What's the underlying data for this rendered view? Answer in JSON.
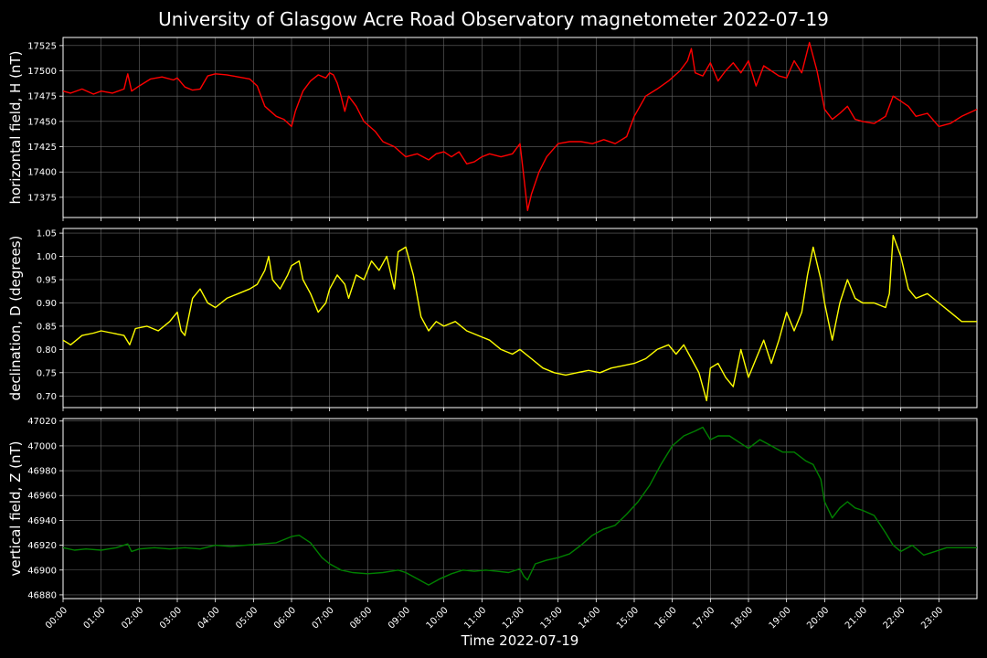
{
  "title": "University of Glasgow Acre Road Observatory magnetometer 2022-07-19",
  "xlabel": "Time 2022-07-19",
  "x_ticks": [
    "00:00",
    "01:00",
    "02:00",
    "03:00",
    "04:00",
    "05:00",
    "06:00",
    "07:00",
    "08:00",
    "09:00",
    "10:00",
    "11:00",
    "12:00",
    "13:00",
    "14:00",
    "15:00",
    "16:00",
    "17:00",
    "18:00",
    "19:00",
    "20:00",
    "21:00",
    "22:00",
    "23:00"
  ],
  "chart_data": [
    {
      "type": "line",
      "ylabel": "horizontal field, H (nT)",
      "ylim": [
        17355,
        17533
      ],
      "yticks": [
        17375,
        17400,
        17425,
        17450,
        17475,
        17500,
        17525
      ],
      "grid": true,
      "color": "#ff0000",
      "x_unit": "hours since 00:00",
      "xlim": [
        0,
        24
      ],
      "series": [
        {
          "x": [
            0,
            0.2,
            0.5,
            0.8,
            1.0,
            1.3,
            1.6,
            1.7,
            1.8,
            2.0,
            2.3,
            2.6,
            2.9,
            3.0,
            3.2,
            3.4,
            3.6,
            3.8,
            4.0,
            4.3,
            4.6,
            4.9,
            5.1,
            5.3,
            5.6,
            5.8,
            6.0,
            6.1,
            6.2,
            6.3,
            6.5,
            6.7,
            6.9,
            7.0,
            7.1,
            7.2,
            7.3,
            7.4,
            7.5,
            7.7,
            7.9,
            8.2,
            8.4,
            8.7,
            9.0,
            9.3,
            9.6,
            9.8,
            10.0,
            10.2,
            10.4,
            10.6,
            10.8,
            11.0,
            11.2,
            11.5,
            11.8,
            12.0,
            12.1,
            12.2,
            12.3,
            12.5,
            12.7,
            13.0,
            13.3,
            13.6,
            13.9,
            14.2,
            14.5,
            14.8,
            15.0,
            15.3,
            15.6,
            15.9,
            16.2,
            16.4,
            16.5,
            16.6,
            16.8,
            17.0,
            17.2,
            17.4,
            17.6,
            17.8,
            18.0,
            18.2,
            18.4,
            18.6,
            18.8,
            19.0,
            19.2,
            19.4,
            19.6,
            19.8,
            20.0,
            20.2,
            20.4,
            20.6,
            20.8,
            21.0,
            21.3,
            21.6,
            21.8,
            22.0,
            22.2,
            22.4,
            22.7,
            23.0,
            23.3,
            23.6,
            24.0
          ],
          "y": [
            17480,
            17478,
            17482,
            17477,
            17480,
            17478,
            17482,
            17497,
            17480,
            17485,
            17492,
            17494,
            17491,
            17493,
            17484,
            17481,
            17482,
            17495,
            17497,
            17496,
            17494,
            17492,
            17485,
            17465,
            17455,
            17452,
            17445,
            17460,
            17470,
            17480,
            17490,
            17496,
            17493,
            17498,
            17496,
            17488,
            17475,
            17460,
            17475,
            17465,
            17450,
            17440,
            17430,
            17425,
            17415,
            17418,
            17412,
            17418,
            17420,
            17415,
            17420,
            17408,
            17410,
            17415,
            17418,
            17415,
            17418,
            17428,
            17395,
            17362,
            17378,
            17400,
            17415,
            17428,
            17430,
            17430,
            17428,
            17432,
            17428,
            17435,
            17455,
            17475,
            17482,
            17490,
            17500,
            17510,
            17522,
            17498,
            17495,
            17508,
            17490,
            17500,
            17508,
            17498,
            17510,
            17485,
            17505,
            17500,
            17495,
            17493,
            17510,
            17498,
            17528,
            17500,
            17462,
            17452,
            17458,
            17465,
            17452,
            17450,
            17448,
            17455,
            17475,
            17470,
            17465,
            17455,
            17458,
            17445,
            17448,
            17455,
            17462
          ]
        }
      ]
    },
    {
      "type": "line",
      "ylabel": "declination, D (degrees)",
      "ylim": [
        0.675,
        1.06
      ],
      "yticks": [
        0.7,
        0.75,
        0.8,
        0.85,
        0.9,
        0.95,
        1.0,
        1.05
      ],
      "grid": true,
      "color": "#ffff00",
      "x_unit": "hours since 00:00",
      "xlim": [
        0,
        24
      ],
      "series": [
        {
          "x": [
            0,
            0.2,
            0.5,
            0.8,
            1.0,
            1.3,
            1.6,
            1.75,
            1.9,
            2.2,
            2.5,
            2.8,
            3.0,
            3.1,
            3.2,
            3.4,
            3.6,
            3.8,
            4.0,
            4.3,
            4.6,
            4.9,
            5.1,
            5.3,
            5.4,
            5.5,
            5.7,
            5.9,
            6.0,
            6.2,
            6.3,
            6.5,
            6.7,
            6.9,
            7.0,
            7.2,
            7.4,
            7.5,
            7.7,
            7.9,
            8.1,
            8.3,
            8.5,
            8.7,
            8.8,
            9.0,
            9.2,
            9.4,
            9.6,
            9.8,
            10.0,
            10.3,
            10.6,
            10.9,
            11.2,
            11.5,
            11.8,
            12.0,
            12.3,
            12.6,
            12.9,
            13.2,
            13.5,
            13.8,
            14.1,
            14.4,
            14.7,
            15.0,
            15.3,
            15.6,
            15.9,
            16.1,
            16.3,
            16.5,
            16.7,
            16.8,
            16.9,
            17.0,
            17.2,
            17.4,
            17.6,
            17.8,
            18.0,
            18.2,
            18.4,
            18.6,
            18.8,
            19.0,
            19.2,
            19.4,
            19.55,
            19.7,
            19.9,
            20.0,
            20.2,
            20.4,
            20.6,
            20.8,
            21.0,
            21.3,
            21.6,
            21.7,
            21.8,
            22.0,
            22.2,
            22.4,
            22.7,
            23.0,
            23.3,
            23.6,
            24.0
          ],
          "y": [
            0.82,
            0.81,
            0.83,
            0.835,
            0.84,
            0.835,
            0.83,
            0.81,
            0.845,
            0.85,
            0.84,
            0.86,
            0.88,
            0.84,
            0.83,
            0.91,
            0.93,
            0.9,
            0.89,
            0.91,
            0.92,
            0.93,
            0.94,
            0.97,
            1.0,
            0.95,
            0.93,
            0.96,
            0.98,
            0.99,
            0.95,
            0.92,
            0.88,
            0.9,
            0.93,
            0.96,
            0.94,
            0.91,
            0.96,
            0.95,
            0.99,
            0.97,
            1.0,
            0.93,
            1.01,
            1.02,
            0.96,
            0.87,
            0.84,
            0.86,
            0.85,
            0.86,
            0.84,
            0.83,
            0.82,
            0.8,
            0.79,
            0.8,
            0.78,
            0.76,
            0.75,
            0.745,
            0.75,
            0.755,
            0.75,
            0.76,
            0.765,
            0.77,
            0.78,
            0.8,
            0.81,
            0.79,
            0.81,
            0.78,
            0.75,
            0.72,
            0.69,
            0.76,
            0.77,
            0.74,
            0.72,
            0.8,
            0.74,
            0.78,
            0.82,
            0.77,
            0.82,
            0.88,
            0.84,
            0.88,
            0.96,
            1.02,
            0.95,
            0.9,
            0.82,
            0.9,
            0.95,
            0.91,
            0.9,
            0.9,
            0.89,
            0.92,
            1.045,
            1.0,
            0.93,
            0.91,
            0.92,
            0.9,
            0.88,
            0.86,
            0.86
          ]
        }
      ]
    },
    {
      "type": "line",
      "ylabel": "vertical field, Z (nT)",
      "ylim": [
        46877,
        47022
      ],
      "yticks": [
        46880,
        46900,
        46920,
        46940,
        46960,
        46980,
        47000,
        47020
      ],
      "grid": true,
      "color": "#008000",
      "x_unit": "hours since 00:00",
      "xlim": [
        0,
        24
      ],
      "series": [
        {
          "x": [
            0,
            0.3,
            0.6,
            1.0,
            1.4,
            1.7,
            1.8,
            2.0,
            2.4,
            2.8,
            3.2,
            3.6,
            4.0,
            4.4,
            4.8,
            5.2,
            5.6,
            6.0,
            6.2,
            6.5,
            6.8,
            7.0,
            7.3,
            7.6,
            8.0,
            8.4,
            8.8,
            9.0,
            9.3,
            9.6,
            9.9,
            10.2,
            10.5,
            10.8,
            11.1,
            11.4,
            11.7,
            12.0,
            12.1,
            12.2,
            12.4,
            12.7,
            13.0,
            13.3,
            13.6,
            13.9,
            14.2,
            14.5,
            14.8,
            15.1,
            15.4,
            15.7,
            16.0,
            16.3,
            16.6,
            16.8,
            17.0,
            17.2,
            17.5,
            17.8,
            18.0,
            18.3,
            18.6,
            18.9,
            19.2,
            19.5,
            19.7,
            19.9,
            20.0,
            20.2,
            20.4,
            20.6,
            20.8,
            21.0,
            21.3,
            21.6,
            21.8,
            22.0,
            22.3,
            22.6,
            22.9,
            23.2,
            23.5,
            24.0
          ],
          "y": [
            46918,
            46916,
            46917,
            46916,
            46918,
            46921,
            46915,
            46917,
            46918,
            46917,
            46918,
            46917,
            46920,
            46919,
            46920,
            46921,
            46922,
            46927,
            46928,
            46922,
            46910,
            46905,
            46900,
            46898,
            46897,
            46898,
            46900,
            46898,
            46893,
            46888,
            46893,
            46897,
            46900,
            46899,
            46900,
            46899,
            46898,
            46901,
            46895,
            46892,
            46905,
            46908,
            46910,
            46913,
            46920,
            46928,
            46933,
            46936,
            46945,
            46955,
            46968,
            46985,
            47000,
            47008,
            47012,
            47015,
            47005,
            47008,
            47008,
            47002,
            46998,
            47005,
            47000,
            46995,
            46995,
            46988,
            46985,
            46973,
            46955,
            46942,
            46950,
            46955,
            46950,
            46948,
            46944,
            46930,
            46920,
            46915,
            46920,
            46912,
            46915,
            46918,
            46918,
            46918
          ]
        }
      ]
    }
  ]
}
